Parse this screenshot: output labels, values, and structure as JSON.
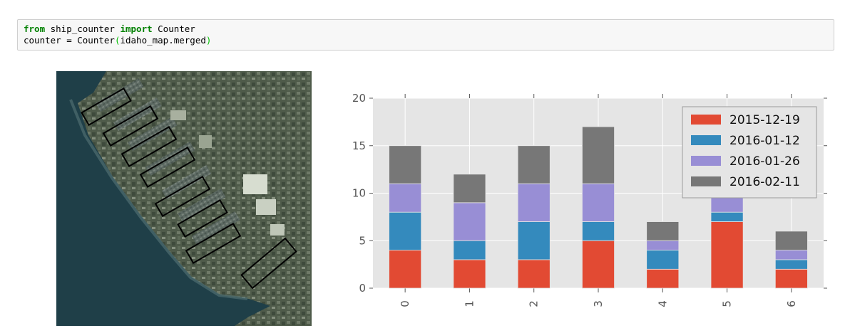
{
  "notebook": {
    "code_lines": [
      [
        {
          "t": "from",
          "c": "kw"
        },
        {
          "t": " ship_counter ",
          "c": ""
        },
        {
          "t": "import",
          "c": "kw"
        },
        {
          "t": " Counter",
          "c": ""
        }
      ],
      [
        {
          "t": "counter = Counter",
          "c": ""
        },
        {
          "t": "(",
          "c": "paren"
        },
        {
          "t": "idaho_map.merged",
          "c": ""
        },
        {
          "t": ")",
          "c": "paren"
        }
      ]
    ]
  },
  "colors": {
    "series": [
      "#e24a33",
      "#348abd",
      "#988ed5",
      "#777777"
    ],
    "plot_bg": "#e5e5e5",
    "grid": "#ffffff"
  },
  "chart_data": {
    "type": "bar",
    "stacked": true,
    "categories": [
      "0",
      "1",
      "2",
      "3",
      "4",
      "5",
      "6"
    ],
    "series": [
      {
        "name": "2015-12-19",
        "values": [
          4,
          3,
          3,
          5,
          2,
          7,
          2
        ]
      },
      {
        "name": "2016-01-12",
        "values": [
          4,
          2,
          4,
          2,
          2,
          1,
          1
        ]
      },
      {
        "name": "2016-01-26",
        "values": [
          3,
          4,
          4,
          4,
          1,
          2,
          1
        ]
      },
      {
        "name": "2016-02-11",
        "values": [
          4,
          3,
          4,
          6,
          2,
          0,
          2
        ]
      }
    ],
    "ylim": [
      0,
      20
    ],
    "yticks": [
      "0",
      "5",
      "10",
      "15",
      "20"
    ],
    "grid": true,
    "legend": "top-right",
    "xtick_rotation": "vertical"
  }
}
